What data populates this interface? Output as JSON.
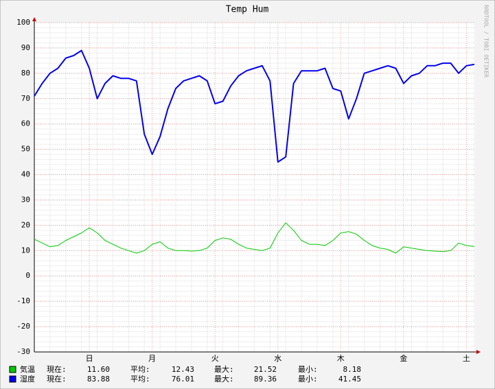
{
  "chart_data": {
    "type": "line",
    "title": "Temp Hum",
    "watermark": "RRDTOOL / TOBI OETIKER",
    "categories": [
      null,
      null,
      null,
      null,
      null,
      null,
      null,
      "日",
      null,
      null,
      null,
      null,
      null,
      null,
      null,
      "月",
      null,
      null,
      null,
      null,
      null,
      null,
      null,
      "火",
      null,
      null,
      null,
      null,
      null,
      null,
      null,
      "水",
      null,
      null,
      null,
      null,
      null,
      null,
      null,
      "木",
      null,
      null,
      null,
      null,
      null,
      null,
      null,
      "金",
      null,
      null,
      null,
      null,
      null,
      null,
      null,
      "土",
      null
    ],
    "ylim": [
      -30,
      100
    ],
    "yticks": [
      -30,
      -20,
      -10,
      0,
      10,
      20,
      30,
      40,
      50,
      60,
      70,
      80,
      90,
      100
    ],
    "grid": true,
    "stat_labels": [
      "現在:",
      "平均:",
      "最大:",
      "最小:"
    ],
    "series": [
      {
        "name": "気温",
        "color": "#00cc00",
        "line_width": 1,
        "values": [
          14.5,
          13,
          11.5,
          12,
          14,
          15.5,
          17,
          19,
          17,
          14,
          12.5,
          11,
          10,
          9,
          10,
          12.5,
          13.5,
          11,
          10,
          10,
          9.8,
          10,
          11,
          14,
          15,
          14.5,
          12.5,
          11,
          10.5,
          10,
          11,
          17,
          21,
          18,
          14,
          12.5,
          12.5,
          12,
          14,
          17,
          17.5,
          16.5,
          14,
          12,
          11,
          10.5,
          9,
          11.5,
          11,
          10.5,
          10,
          9.8,
          9.6,
          10,
          13,
          12,
          11.6
        ],
        "stats": [
          "11.60",
          "12.43",
          "21.52",
          "8.18"
        ]
      },
      {
        "name": "湿度",
        "color": "#0000ee",
        "line_width": 2,
        "values": [
          71,
          76,
          80,
          82,
          86,
          87,
          89,
          82,
          70,
          76,
          79,
          78,
          78,
          77,
          56,
          48,
          55,
          66,
          74,
          77,
          78,
          79,
          77,
          68,
          69,
          75,
          79,
          81,
          82,
          83,
          77,
          45,
          47,
          76,
          81,
          81,
          81,
          82,
          74,
          73,
          62,
          70,
          80,
          81,
          82,
          83,
          82,
          76,
          79,
          80,
          83,
          83,
          84,
          84,
          80,
          83,
          83.5
        ],
        "stats": [
          "83.88",
          "76.01",
          "89.36",
          "41.45"
        ]
      }
    ]
  }
}
